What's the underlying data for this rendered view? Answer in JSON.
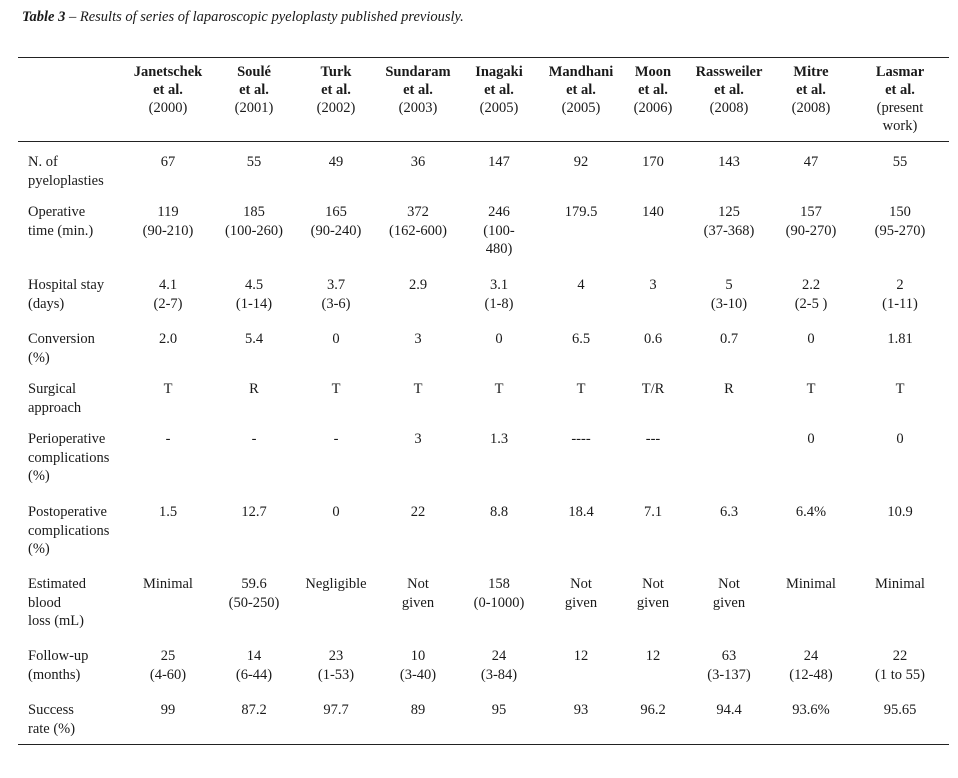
{
  "caption": {
    "label": "Table 3",
    "text": " – Results of series of laparoscopic pyeloplasty published previously."
  },
  "columns": [
    {
      "name": "Janetschek\net al.",
      "year": "(2000)"
    },
    {
      "name": "Soulé\net al.",
      "year": "(2001)"
    },
    {
      "name": "Turk\net al.",
      "year": "(2002)"
    },
    {
      "name": "Sundaram\net al.",
      "year": "(2003)"
    },
    {
      "name": "Inagaki\net al.",
      "year": "(2005)"
    },
    {
      "name": "Mandhani\net al.",
      "year": "(2005)"
    },
    {
      "name": "Moon\net al.",
      "year": "(2006)"
    },
    {
      "name": "Rassweiler\net al.",
      "year": "(2008)"
    },
    {
      "name": "Mitre\net al.",
      "year": "(2008)"
    },
    {
      "name": "Lasmar\net al.",
      "year": "(present\nwork)"
    }
  ],
  "rows": [
    {
      "label": "N. of\npyeloplasties",
      "cells": [
        "67",
        "55",
        "49",
        "36",
        "147",
        "92",
        "170",
        "143",
        "47",
        "55"
      ]
    },
    {
      "label": "Operative\ntime (min.)",
      "cells": [
        "119\n(90-210)",
        "185\n(100-260)",
        "165\n(90-240)",
        "372\n(162-600)",
        "246\n(100-\n480)",
        "179.5",
        "140",
        "125\n(37-368)",
        "157\n(90-270)",
        "150\n(95-270)"
      ]
    },
    {
      "label": "Hospital stay\n (days)",
      "cells": [
        "4.1\n(2-7)",
        "4.5\n(1-14)",
        "3.7\n(3-6)",
        "2.9",
        "3.1\n(1-8)",
        "4",
        "3",
        "5\n(3-10)",
        "2.2\n(2-5 )",
        "2\n(1-11)"
      ]
    },
    {
      "label": "Conversion\n(%)",
      "cells": [
        "2.0",
        "5.4",
        "0",
        "3",
        "0",
        "6.5",
        "0.6",
        "0.7",
        "0",
        "1.81"
      ]
    },
    {
      "label": "Surgical\napproach",
      "cells": [
        "T",
        "R",
        "T",
        "T",
        "T",
        "T",
        "T/R",
        "R",
        "T",
        "T"
      ]
    },
    {
      "label": "Perioperative\ncomplications\n(%)",
      "cells": [
        "-",
        "-",
        "-",
        "3",
        "1.3",
        "----",
        "---",
        "",
        "0",
        "0"
      ]
    },
    {
      "label": "Postoperative\ncomplications\n(%)",
      "cells": [
        "1.5",
        "12.7",
        "0",
        "22",
        "8.8",
        "18.4",
        "7.1",
        "6.3",
        "6.4%",
        "10.9"
      ]
    },
    {
      "label": "Estimated\nblood\nloss (mL)",
      "cells": [
        "Minimal",
        "59.6\n(50-250)",
        "Negligible",
        "Not\ngiven",
        "158\n(0-1000)",
        "Not\ngiven",
        "Not\ngiven",
        "Not\ngiven",
        "Minimal",
        "Minimal"
      ]
    },
    {
      "label": "Follow-up\n(months)",
      "cells": [
        "25\n(4-60)",
        "14\n(6-44)",
        "23\n(1-53)",
        "10\n(3-40)",
        "24\n(3-84)",
        "12",
        "12",
        "63\n(3-137)",
        "24\n(12-48)",
        "22\n(1 to 55)"
      ]
    },
    {
      "label": "Success\nrate (%)",
      "cells": [
        "99",
        "87.2",
        "97.7",
        "89",
        "95",
        "93",
        "96.2",
        "94.4",
        "93.6%",
        "95.65"
      ]
    }
  ]
}
